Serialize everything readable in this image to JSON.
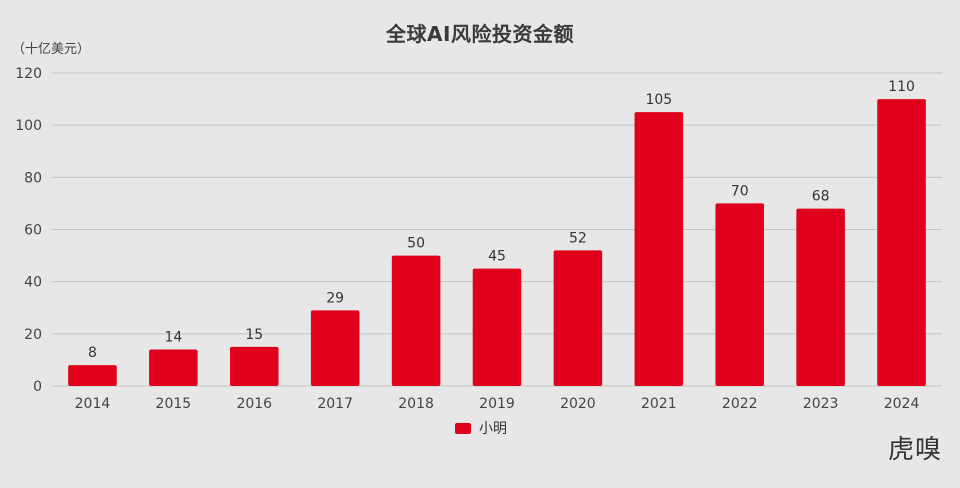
{
  "chart_data": {
    "type": "bar",
    "title": "全球AI风险投资金额",
    "ylabel": "（十亿美元）",
    "xlabel": "",
    "categories": [
      "2014",
      "2015",
      "2016",
      "2017",
      "2018",
      "2019",
      "2020",
      "2021",
      "2022",
      "2023",
      "2024"
    ],
    "series": [
      {
        "name": "小明",
        "values": [
          8,
          14,
          15,
          29,
          50,
          45,
          52,
          105,
          70,
          68,
          110
        ]
      }
    ],
    "ylim": [
      0,
      120
    ],
    "yticks": [
      0,
      20,
      40,
      60,
      80,
      100,
      120
    ],
    "grid": true,
    "legend_position": "bottom-center",
    "bar_color": "#e0001b",
    "data_labels": true
  },
  "watermark": "虎嗅"
}
